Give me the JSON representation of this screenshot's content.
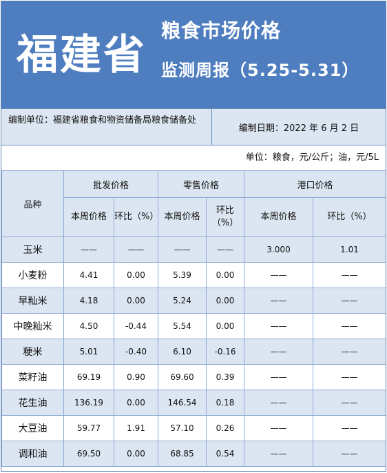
{
  "banner": {
    "province": "福建省",
    "title_line1": "粮食市场价格",
    "title_line2": "监测周报（5.25-5.31）"
  },
  "info": {
    "compiler": "编制单位：福建省粮食和物资储备局粮食储备处",
    "compile_date": "编制日期：2022 年 6 月 2 日",
    "units": "单位：粮食，元/公斤；油，元/5L"
  },
  "table": {
    "col_variety": "品种",
    "group_wholesale": "批发价格",
    "group_retail": "零售价格",
    "group_port": "港口价格",
    "wk_price": "本周价格",
    "mom": "环比（%）",
    "rows": [
      {
        "name": "玉米",
        "ws_price": "——",
        "ws_mom": "——",
        "rt_price": "——",
        "rt_mom": "——",
        "port_price": "3.000",
        "port_mom": "1.01"
      },
      {
        "name": "小麦粉",
        "ws_price": "4.41",
        "ws_mom": "0.00",
        "rt_price": "5.39",
        "rt_mom": "0.00",
        "port_price": "——",
        "port_mom": "——"
      },
      {
        "name": "早籼米",
        "ws_price": "4.18",
        "ws_mom": "0.00",
        "rt_price": "5.24",
        "rt_mom": "0.00",
        "port_price": "——",
        "port_mom": "——"
      },
      {
        "name": "中晚籼米",
        "ws_price": "4.50",
        "ws_mom": "-0.44",
        "rt_price": "5.54",
        "rt_mom": "0.00",
        "port_price": "——",
        "port_mom": "——"
      },
      {
        "name": "粳米",
        "ws_price": "5.01",
        "ws_mom": "-0.40",
        "rt_price": "6.10",
        "rt_mom": "-0.16",
        "port_price": "——",
        "port_mom": "——"
      },
      {
        "name": "菜籽油",
        "ws_price": "69.19",
        "ws_mom": "0.90",
        "rt_price": "69.60",
        "rt_mom": "0.39",
        "port_price": "——",
        "port_mom": "——"
      },
      {
        "name": "花生油",
        "ws_price": "136.19",
        "ws_mom": "0.00",
        "rt_price": "146.54",
        "rt_mom": "0.18",
        "port_price": "——",
        "port_mom": "——"
      },
      {
        "name": "大豆油",
        "ws_price": "59.77",
        "ws_mom": "1.91",
        "rt_price": "57.10",
        "rt_mom": "0.26",
        "port_price": "——",
        "port_mom": "——"
      },
      {
        "name": "调和油",
        "ws_price": "69.50",
        "ws_mom": "0.00",
        "rt_price": "68.85",
        "rt_mom": "0.54",
        "port_price": "——",
        "port_mom": "——"
      }
    ]
  }
}
